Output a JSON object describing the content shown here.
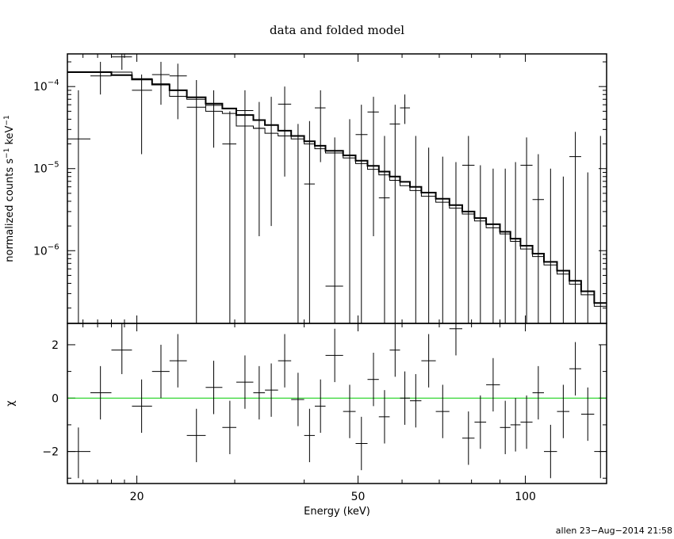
{
  "chart_data": {
    "type": "line",
    "title": "data and folded model",
    "xlabel": "Energy (keV)",
    "x_scale": "log",
    "xlim": [
      15.0,
      140.0
    ],
    "x_ticks": [
      {
        "value": 20,
        "label": "20"
      },
      {
        "value": 50,
        "label": "50"
      },
      {
        "value": 100,
        "label": "100"
      }
    ],
    "top_panel": {
      "ylabel_main": "normalized counts s",
      "ylabel_sup1": "−1",
      "ylabel_mid": " keV",
      "ylabel_sup2": "−1",
      "y_scale": "log",
      "ylim": [
        1.3e-07,
        0.00025
      ],
      "y_ticks": [
        {
          "value": 0.0001,
          "base": "10",
          "exp": "−4"
        },
        {
          "value": 1e-05,
          "base": "10",
          "exp": "−5"
        },
        {
          "value": 1e-06,
          "base": "10",
          "exp": "−6"
        }
      ],
      "data_points": [
        {
          "x": 15.7,
          "xlo": 15.0,
          "xhi": 16.5,
          "y": 2.3e-05,
          "ylo": 1.3e-07,
          "yhi": 9e-05
        },
        {
          "x": 17.2,
          "xlo": 16.5,
          "xhi": 18.0,
          "y": 0.000135,
          "ylo": 8e-05,
          "yhi": 0.0002
        },
        {
          "x": 18.8,
          "xlo": 18.0,
          "xhi": 19.6,
          "y": 0.00023,
          "ylo": 0.00016,
          "yhi": 0.00025
        },
        {
          "x": 20.4,
          "xlo": 19.6,
          "xhi": 21.3,
          "y": 9e-05,
          "ylo": 1.5e-05,
          "yhi": 0.00014
        },
        {
          "x": 22.1,
          "xlo": 21.3,
          "xhi": 22.9,
          "y": 0.00014,
          "ylo": 6e-05,
          "yhi": 0.0002
        },
        {
          "x": 23.7,
          "xlo": 22.9,
          "xhi": 24.6,
          "y": 0.000135,
          "ylo": 4e-05,
          "yhi": 0.00019
        },
        {
          "x": 25.6,
          "xlo": 24.6,
          "xhi": 26.6,
          "y": 5.6e-05,
          "ylo": 1.3e-07,
          "yhi": 0.00012
        },
        {
          "x": 27.5,
          "xlo": 26.6,
          "xhi": 28.5,
          "y": 5.9e-05,
          "ylo": 1.8e-05,
          "yhi": 9e-05
        },
        {
          "x": 29.4,
          "xlo": 28.5,
          "xhi": 30.2,
          "y": 2e-05,
          "ylo": 1.3e-07,
          "yhi": 5e-05
        },
        {
          "x": 31.3,
          "xlo": 30.2,
          "xhi": 32.4,
          "y": 5.1e-05,
          "ylo": 1.3e-07,
          "yhi": 9e-05
        },
        {
          "x": 33.2,
          "xlo": 32.4,
          "xhi": 34.0,
          "y": 3.1e-05,
          "ylo": 1.5e-06,
          "yhi": 6.5e-05
        },
        {
          "x": 34.9,
          "xlo": 34.0,
          "xhi": 35.9,
          "y": 3.4e-05,
          "ylo": 2e-06,
          "yhi": 7.5e-05
        },
        {
          "x": 36.9,
          "xlo": 35.9,
          "xhi": 37.9,
          "y": 6.1e-05,
          "ylo": 8e-06,
          "yhi": 0.0001
        },
        {
          "x": 39.0,
          "xlo": 37.9,
          "xhi": 40.0,
          "y": 1.3e-07,
          "ylo": 1.3e-07,
          "yhi": 3.5e-05
        },
        {
          "x": 40.9,
          "xlo": 40.0,
          "xhi": 41.8,
          "y": 6.5e-06,
          "ylo": 1.3e-07,
          "yhi": 3.8e-05
        },
        {
          "x": 42.8,
          "xlo": 41.8,
          "xhi": 43.7,
          "y": 5.5e-05,
          "ylo": 1.2e-05,
          "yhi": 9e-05
        },
        {
          "x": 45.4,
          "xlo": 43.7,
          "xhi": 47.0,
          "y": 3.7e-07,
          "ylo": 1.3e-07,
          "yhi": 2.4e-05
        },
        {
          "x": 48.3,
          "xlo": 47.0,
          "xhi": 49.5,
          "y": 1.3e-07,
          "ylo": 1.3e-07,
          "yhi": 4e-05
        },
        {
          "x": 50.7,
          "xlo": 49.5,
          "xhi": 52.0,
          "y": 2.6e-05,
          "ylo": 1.3e-07,
          "yhi": 6e-05
        },
        {
          "x": 53.3,
          "xlo": 52.0,
          "xhi": 54.5,
          "y": 4.9e-05,
          "ylo": 1.5e-06,
          "yhi": 7.5e-05
        },
        {
          "x": 55.8,
          "xlo": 54.5,
          "xhi": 57.0,
          "y": 4.4e-06,
          "ylo": 1.3e-07,
          "yhi": 2.5e-05
        },
        {
          "x": 58.3,
          "xlo": 57.0,
          "xhi": 59.5,
          "y": 3.5e-05,
          "ylo": 1.3e-07,
          "yhi": 6e-05
        },
        {
          "x": 60.7,
          "xlo": 59.5,
          "xhi": 62.0,
          "y": 5.5e-05,
          "ylo": 3.5e-05,
          "yhi": 8e-05
        },
        {
          "x": 63.5,
          "xlo": 62.0,
          "xhi": 65.0,
          "y": 1.3e-07,
          "ylo": 1.3e-07,
          "yhi": 2.5e-05
        },
        {
          "x": 67.0,
          "xlo": 65.0,
          "xhi": 69.0,
          "y": 1.3e-07,
          "ylo": 1.3e-07,
          "yhi": 1.8e-05
        },
        {
          "x": 71.0,
          "xlo": 69.0,
          "xhi": 73.0,
          "y": 1.3e-07,
          "ylo": 1.3e-07,
          "yhi": 1.4e-05
        },
        {
          "x": 75.0,
          "xlo": 73.0,
          "xhi": 77.0,
          "y": 1.3e-07,
          "ylo": 1.3e-07,
          "yhi": 1.2e-05
        },
        {
          "x": 79.0,
          "xlo": 77.0,
          "xhi": 81.0,
          "y": 1.1e-05,
          "ylo": 1.3e-07,
          "yhi": 2.5e-05
        },
        {
          "x": 83.0,
          "xlo": 81.0,
          "xhi": 85.0,
          "y": 1.3e-07,
          "ylo": 1.3e-07,
          "yhi": 1.1e-05
        },
        {
          "x": 87.5,
          "xlo": 85.0,
          "xhi": 90.0,
          "y": 1.3e-07,
          "ylo": 1.3e-07,
          "yhi": 1e-05
        },
        {
          "x": 92.0,
          "xlo": 90.0,
          "xhi": 94.0,
          "y": 1.3e-07,
          "ylo": 1.3e-07,
          "yhi": 1e-05
        },
        {
          "x": 96.0,
          "xlo": 94.0,
          "xhi": 98.0,
          "y": 1.3e-07,
          "ylo": 1.3e-07,
          "yhi": 1.2e-05
        },
        {
          "x": 100.5,
          "xlo": 98.0,
          "xhi": 103.0,
          "y": 1.1e-05,
          "ylo": 1.3e-07,
          "yhi": 2.4e-05
        },
        {
          "x": 105.5,
          "xlo": 103.0,
          "xhi": 108.0,
          "y": 4.2e-06,
          "ylo": 1.3e-07,
          "yhi": 1.5e-05
        },
        {
          "x": 111.0,
          "xlo": 108.0,
          "xhi": 114.0,
          "y": 1.3e-07,
          "ylo": 1.3e-07,
          "yhi": 1e-05
        },
        {
          "x": 117.0,
          "xlo": 114.0,
          "xhi": 120.0,
          "y": 1.3e-07,
          "ylo": 1.3e-07,
          "yhi": 8e-06
        },
        {
          "x": 123.0,
          "xlo": 120.0,
          "xhi": 126.0,
          "y": 1.4e-05,
          "ylo": 1.3e-07,
          "yhi": 2.8e-05
        },
        {
          "x": 129.5,
          "xlo": 126.0,
          "xhi": 133.0,
          "y": 1.3e-07,
          "ylo": 1.3e-07,
          "yhi": 9e-06
        },
        {
          "x": 136.5,
          "xlo": 133.0,
          "xhi": 140.0,
          "y": 1.3e-07,
          "ylo": 1.3e-07,
          "yhi": 2.5e-05
        }
      ],
      "model_thick": [
        [
          15.0,
          0.00015
        ],
        [
          16.5,
          0.00015
        ],
        [
          18.0,
          0.000138
        ],
        [
          19.6,
          0.000122
        ],
        [
          21.3,
          0.000106
        ],
        [
          22.9,
          9e-05
        ],
        [
          24.6,
          7.4e-05
        ],
        [
          26.6,
          6.2e-05
        ],
        [
          28.5,
          5.4e-05
        ],
        [
          30.2,
          4.5e-05
        ],
        [
          32.4,
          3.9e-05
        ],
        [
          34.0,
          3.4e-05
        ],
        [
          35.9,
          2.9e-05
        ],
        [
          37.9,
          2.5e-05
        ],
        [
          40.0,
          2.15e-05
        ],
        [
          41.8,
          1.9e-05
        ],
        [
          43.7,
          1.65e-05
        ],
        [
          47.0,
          1.45e-05
        ],
        [
          49.5,
          1.25e-05
        ],
        [
          52.0,
          1.08e-05
        ],
        [
          54.5,
          9.2e-06
        ],
        [
          57.0,
          8e-06
        ],
        [
          59.5,
          6.9e-06
        ],
        [
          62.0,
          6e-06
        ],
        [
          65.0,
          5.1e-06
        ],
        [
          69.0,
          4.3e-06
        ],
        [
          73.0,
          3.6e-06
        ],
        [
          77.0,
          3e-06
        ],
        [
          81.0,
          2.5e-06
        ],
        [
          85.0,
          2.1e-06
        ],
        [
          90.0,
          1.7e-06
        ],
        [
          94.0,
          1.4e-06
        ],
        [
          98.0,
          1.15e-06
        ],
        [
          103.0,
          9.2e-07
        ],
        [
          108.0,
          7.3e-07
        ],
        [
          114.0,
          5.7e-07
        ],
        [
          120.0,
          4.3e-07
        ],
        [
          126.0,
          3.2e-07
        ],
        [
          133.0,
          2.3e-07
        ],
        [
          140.0,
          1.7e-07
        ]
      ],
      "model_thin": [
        [
          15.0,
          0.00015
        ],
        [
          16.5,
          0.00015
        ],
        [
          18.0,
          0.00015
        ],
        [
          19.6,
          0.000125
        ],
        [
          21.3,
          0.000108
        ],
        [
          22.9,
          7.6e-05
        ],
        [
          24.6,
          7e-05
        ],
        [
          26.6,
          5e-05
        ],
        [
          28.5,
          4.7e-05
        ],
        [
          30.2,
          3.3e-05
        ],
        [
          32.4,
          3.1e-05
        ],
        [
          34.0,
          2.7e-05
        ],
        [
          35.9,
          2.5e-05
        ],
        [
          37.9,
          2.3e-05
        ],
        [
          40.0,
          2e-05
        ],
        [
          41.8,
          1.75e-05
        ],
        [
          43.7,
          1.55e-05
        ],
        [
          47.0,
          1.35e-05
        ],
        [
          49.5,
          1.15e-05
        ],
        [
          52.0,
          9.8e-06
        ],
        [
          54.5,
          8.4e-06
        ],
        [
          57.0,
          7.2e-06
        ],
        [
          59.5,
          6.2e-06
        ],
        [
          62.0,
          5.4e-06
        ],
        [
          65.0,
          4.6e-06
        ],
        [
          69.0,
          3.9e-06
        ],
        [
          73.0,
          3.3e-06
        ],
        [
          77.0,
          2.8e-06
        ],
        [
          81.0,
          2.3e-06
        ],
        [
          85.0,
          1.9e-06
        ],
        [
          90.0,
          1.6e-06
        ],
        [
          94.0,
          1.3e-06
        ],
        [
          98.0,
          1.05e-06
        ],
        [
          103.0,
          8.5e-07
        ],
        [
          108.0,
          6.7e-07
        ],
        [
          114.0,
          5.2e-07
        ],
        [
          120.0,
          3.9e-07
        ],
        [
          126.0,
          2.9e-07
        ],
        [
          133.0,
          2.1e-07
        ],
        [
          140.0,
          1.6e-07
        ]
      ]
    },
    "bottom_panel": {
      "ylabel": "χ",
      "ylim": [
        -3.2,
        2.8
      ],
      "y_ticks": [
        {
          "value": 2,
          "label": "2"
        },
        {
          "value": 0,
          "label": "0"
        },
        {
          "value": -2,
          "label": "−2"
        }
      ],
      "zero_line_color": "#00cc00",
      "points": [
        {
          "x": 15.7,
          "xlo": 15.0,
          "xhi": 16.5,
          "y": -2.0,
          "ylo": -3.0,
          "yhi": -1.1
        },
        {
          "x": 17.2,
          "xlo": 16.5,
          "xhi": 18.0,
          "y": 0.2,
          "ylo": -0.8,
          "yhi": 1.2
        },
        {
          "x": 18.8,
          "xlo": 18.0,
          "xhi": 19.6,
          "y": 1.8,
          "ylo": 0.9,
          "yhi": 2.8
        },
        {
          "x": 20.4,
          "xlo": 19.6,
          "xhi": 21.3,
          "y": -0.3,
          "ylo": -1.3,
          "yhi": 0.7
        },
        {
          "x": 22.1,
          "xlo": 21.3,
          "xhi": 22.9,
          "y": 1.0,
          "ylo": 0.0,
          "yhi": 2.0
        },
        {
          "x": 23.7,
          "xlo": 22.9,
          "xhi": 24.6,
          "y": 1.4,
          "ylo": 0.4,
          "yhi": 2.4
        },
        {
          "x": 25.6,
          "xlo": 24.6,
          "xhi": 26.6,
          "y": -1.4,
          "ylo": -2.4,
          "yhi": -0.4
        },
        {
          "x": 27.5,
          "xlo": 26.6,
          "xhi": 28.5,
          "y": 0.4,
          "ylo": -0.6,
          "yhi": 1.4
        },
        {
          "x": 29.4,
          "xlo": 28.5,
          "xhi": 30.2,
          "y": -1.1,
          "ylo": -2.1,
          "yhi": -0.1
        },
        {
          "x": 31.3,
          "xlo": 30.2,
          "xhi": 32.4,
          "y": 0.6,
          "ylo": -0.4,
          "yhi": 1.6
        },
        {
          "x": 33.2,
          "xlo": 32.4,
          "xhi": 34.0,
          "y": 0.2,
          "ylo": -0.8,
          "yhi": 1.2
        },
        {
          "x": 34.9,
          "xlo": 34.0,
          "xhi": 35.9,
          "y": 0.3,
          "ylo": -0.7,
          "yhi": 1.3
        },
        {
          "x": 36.9,
          "xlo": 35.9,
          "xhi": 37.9,
          "y": 1.4,
          "ylo": 0.4,
          "yhi": 2.4
        },
        {
          "x": 39.0,
          "xlo": 37.9,
          "xhi": 40.0,
          "y": -0.05,
          "ylo": -1.05,
          "yhi": 0.95
        },
        {
          "x": 40.9,
          "xlo": 40.0,
          "xhi": 41.8,
          "y": -1.4,
          "ylo": -2.4,
          "yhi": -0.4
        },
        {
          "x": 42.8,
          "xlo": 41.8,
          "xhi": 43.7,
          "y": -0.3,
          "ylo": -1.3,
          "yhi": 0.7
        },
        {
          "x": 45.4,
          "xlo": 43.7,
          "xhi": 47.0,
          "y": 1.6,
          "ylo": 0.6,
          "yhi": 2.6
        },
        {
          "x": 48.3,
          "xlo": 47.0,
          "xhi": 49.5,
          "y": -0.5,
          "ylo": -1.5,
          "yhi": 0.5
        },
        {
          "x": 50.7,
          "xlo": 49.5,
          "xhi": 52.0,
          "y": -1.7,
          "ylo": -2.7,
          "yhi": -0.7
        },
        {
          "x": 53.3,
          "xlo": 52.0,
          "xhi": 54.5,
          "y": 0.7,
          "ylo": -0.3,
          "yhi": 1.7
        },
        {
          "x": 55.8,
          "xlo": 54.5,
          "xhi": 57.0,
          "y": -0.7,
          "ylo": -1.7,
          "yhi": 0.3
        },
        {
          "x": 58.3,
          "xlo": 57.0,
          "xhi": 59.5,
          "y": 1.8,
          "ylo": 0.8,
          "yhi": 2.8
        },
        {
          "x": 60.7,
          "xlo": 59.5,
          "xhi": 62.0,
          "y": 0.0,
          "ylo": -1.0,
          "yhi": 1.0
        },
        {
          "x": 63.5,
          "xlo": 62.0,
          "xhi": 65.0,
          "y": -0.1,
          "ylo": -1.1,
          "yhi": 0.9
        },
        {
          "x": 67.0,
          "xlo": 65.0,
          "xhi": 69.0,
          "y": 1.4,
          "ylo": 0.4,
          "yhi": 2.4
        },
        {
          "x": 71.0,
          "xlo": 69.0,
          "xhi": 73.0,
          "y": -0.5,
          "ylo": -1.5,
          "yhi": 0.5
        },
        {
          "x": 75.0,
          "xlo": 73.0,
          "xhi": 77.0,
          "y": 2.6,
          "ylo": 1.6,
          "yhi": 2.8
        },
        {
          "x": 79.0,
          "xlo": 77.0,
          "xhi": 81.0,
          "y": -1.5,
          "ylo": -2.5,
          "yhi": -0.5
        },
        {
          "x": 83.0,
          "xlo": 81.0,
          "xhi": 85.0,
          "y": -0.9,
          "ylo": -1.9,
          "yhi": 0.1
        },
        {
          "x": 87.5,
          "xlo": 85.0,
          "xhi": 90.0,
          "y": 0.5,
          "ylo": -0.5,
          "yhi": 1.5
        },
        {
          "x": 92.0,
          "xlo": 90.0,
          "xhi": 94.0,
          "y": -1.1,
          "ylo": -2.1,
          "yhi": -0.1
        },
        {
          "x": 96.0,
          "xlo": 94.0,
          "xhi": 98.0,
          "y": -1.0,
          "ylo": -2.0,
          "yhi": 0.0
        },
        {
          "x": 100.5,
          "xlo": 98.0,
          "xhi": 103.0,
          "y": -0.9,
          "ylo": -1.9,
          "yhi": 0.1
        },
        {
          "x": 105.5,
          "xlo": 103.0,
          "xhi": 108.0,
          "y": 0.2,
          "ylo": -0.8,
          "yhi": 1.2
        },
        {
          "x": 111.0,
          "xlo": 108.0,
          "xhi": 114.0,
          "y": -2.0,
          "ylo": -3.0,
          "yhi": -1.0
        },
        {
          "x": 117.0,
          "xlo": 114.0,
          "xhi": 120.0,
          "y": -0.5,
          "ylo": -1.5,
          "yhi": 0.5
        },
        {
          "x": 123.0,
          "xlo": 120.0,
          "xhi": 126.0,
          "y": 1.1,
          "ylo": 0.1,
          "yhi": 2.1
        },
        {
          "x": 129.5,
          "xlo": 126.0,
          "xhi": 133.0,
          "y": -0.6,
          "ylo": -1.6,
          "yhi": 0.4
        },
        {
          "x": 136.5,
          "xlo": 133.0,
          "xhi": 140.0,
          "y": -2.0,
          "ylo": -3.0,
          "yhi": 2.0
        }
      ]
    }
  },
  "footer": {
    "stamp": "allen 23−Aug−2014 21:58"
  }
}
